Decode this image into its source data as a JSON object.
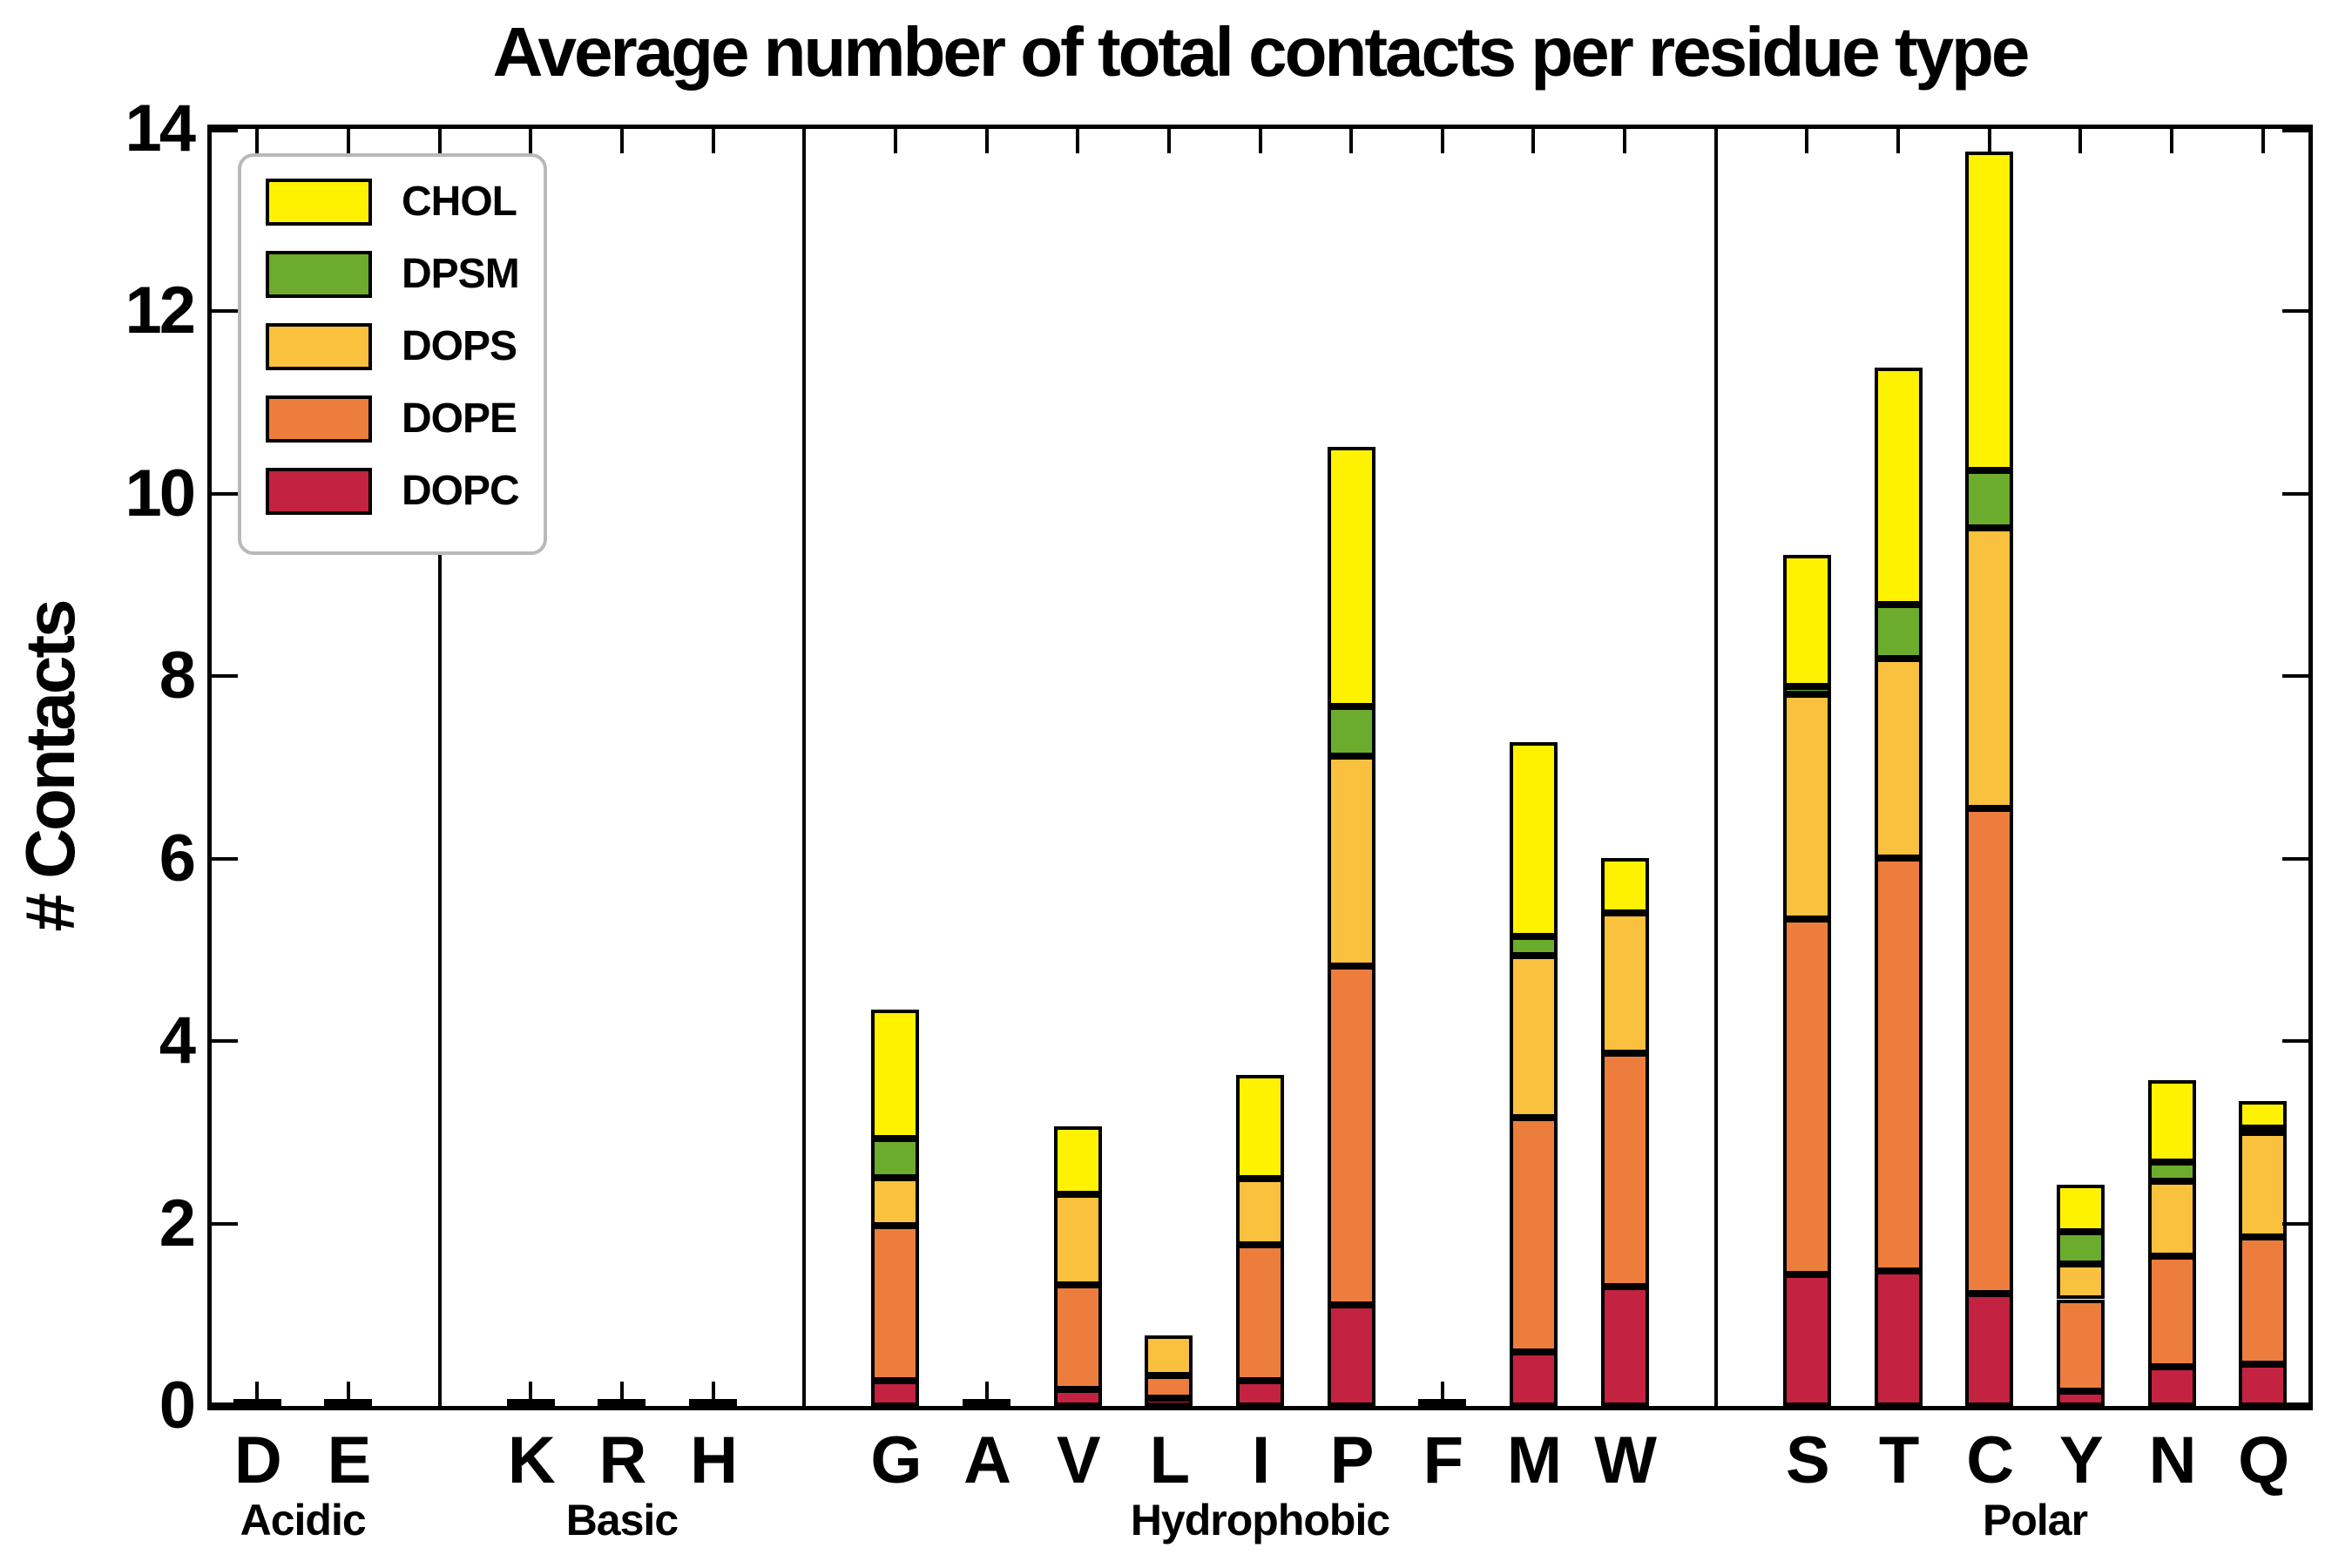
{
  "chart_data": {
    "type": "bar",
    "stacked": true,
    "title": "Average number of total contacts per residue type",
    "ylabel": "# Contacts",
    "xlabel": "",
    "ylim": [
      0,
      14
    ],
    "yticks": [
      0,
      2,
      4,
      6,
      8,
      10,
      12,
      14
    ],
    "grid": false,
    "legend": {
      "position": "upper-left",
      "entries": [
        {
          "name": "CHOL",
          "color": "#FFF200"
        },
        {
          "name": "DPSM",
          "color": "#6CAC2D"
        },
        {
          "name": "DOPS",
          "color": "#F9C13E"
        },
        {
          "name": "DOPE",
          "color": "#EC7D3D"
        },
        {
          "name": "DOPC",
          "color": "#C32240"
        }
      ]
    },
    "stack_order_bottom_to_top": [
      "DOPC",
      "DOPE",
      "DOPS",
      "DPSM",
      "CHOL"
    ],
    "edge_color": "#000000",
    "groups": [
      {
        "label": "Acidic",
        "residues": [
          "D",
          "E"
        ]
      },
      {
        "label": "Basic",
        "residues": [
          "K",
          "R",
          "H"
        ]
      },
      {
        "label": "Hydrophobic",
        "residues": [
          "G",
          "A",
          "V",
          "L",
          "I",
          "P",
          "F",
          "M",
          "W"
        ]
      },
      {
        "label": "Polar",
        "residues": [
          "S",
          "T",
          "C",
          "Y",
          "N",
          "Q"
        ]
      }
    ],
    "values": {
      "D": {
        "DOPC": 0.02,
        "DOPE": 0,
        "DOPS": 0,
        "DPSM": 0,
        "CHOL": 0
      },
      "E": {
        "DOPC": 0.02,
        "DOPE": 0,
        "DOPS": 0,
        "DPSM": 0,
        "CHOL": 0
      },
      "K": {
        "DOPC": 0.02,
        "DOPE": 0,
        "DOPS": 0,
        "DPSM": 0,
        "CHOL": 0
      },
      "R": {
        "DOPC": 0.02,
        "DOPE": 0,
        "DOPS": 0,
        "DPSM": 0,
        "CHOL": 0
      },
      "H": {
        "DOPC": 0.02,
        "DOPE": 0,
        "DOPS": 0,
        "DPSM": 0,
        "CHOL": 0
      },
      "G": {
        "DOPC": 0.28,
        "DOPE": 1.7,
        "DOPS": 0.52,
        "DPSM": 0.43,
        "CHOL": 1.42
      },
      "A": {
        "DOPC": 0.03,
        "DOPE": 0,
        "DOPS": 0,
        "DPSM": 0,
        "CHOL": 0
      },
      "V": {
        "DOPC": 0.18,
        "DOPE": 1.15,
        "DOPS": 0.99,
        "DPSM": 0,
        "CHOL": 0.75
      },
      "L": {
        "DOPC": 0.09,
        "DOPE": 0.24,
        "DOPS": 0.44,
        "DPSM": 0,
        "CHOL": 0
      },
      "I": {
        "DOPC": 0.28,
        "DOPE": 1.49,
        "DOPS": 0.72,
        "DPSM": 0,
        "CHOL": 1.14
      },
      "P": {
        "DOPC": 1.11,
        "DOPE": 3.71,
        "DOPS": 2.3,
        "DPSM": 0.55,
        "CHOL": 2.84
      },
      "F": {
        "DOPC": 0.03,
        "DOPE": 0,
        "DOPS": 0,
        "DPSM": 0,
        "CHOL": 0
      },
      "M": {
        "DOPC": 0.59,
        "DOPE": 2.57,
        "DOPS": 1.78,
        "DPSM": 0.21,
        "CHOL": 2.13
      },
      "W": {
        "DOPC": 1.31,
        "DOPE": 2.56,
        "DOPS": 1.54,
        "DPSM": 0,
        "CHOL": 0.6
      },
      "S": {
        "DOPC": 1.44,
        "DOPE": 3.9,
        "DOPS": 2.46,
        "DPSM": 0.09,
        "CHOL": 1.44
      },
      "T": {
        "DOPC": 1.48,
        "DOPE": 4.53,
        "DOPS": 2.18,
        "DPSM": 0.6,
        "CHOL": 2.59
      },
      "C": {
        "DOPC": 1.23,
        "DOPE": 5.32,
        "DOPS": 3.08,
        "DPSM": 0.63,
        "CHOL": 3.49
      },
      "Y": {
        "DOPC": 0.16,
        "DOPE": 1.01,
        "DOPS": 0.39,
        "DPSM": 0.35,
        "CHOL": 0.52
      },
      "N": {
        "DOPC": 0.43,
        "DOPE": 1.21,
        "DOPS": 0.82,
        "DPSM": 0.21,
        "CHOL": 0.9
      },
      "Q": {
        "DOPC": 0.46,
        "DOPE": 1.39,
        "DOPS": 1.15,
        "DPSM": 0.05,
        "CHOL": 0.29
      }
    }
  }
}
